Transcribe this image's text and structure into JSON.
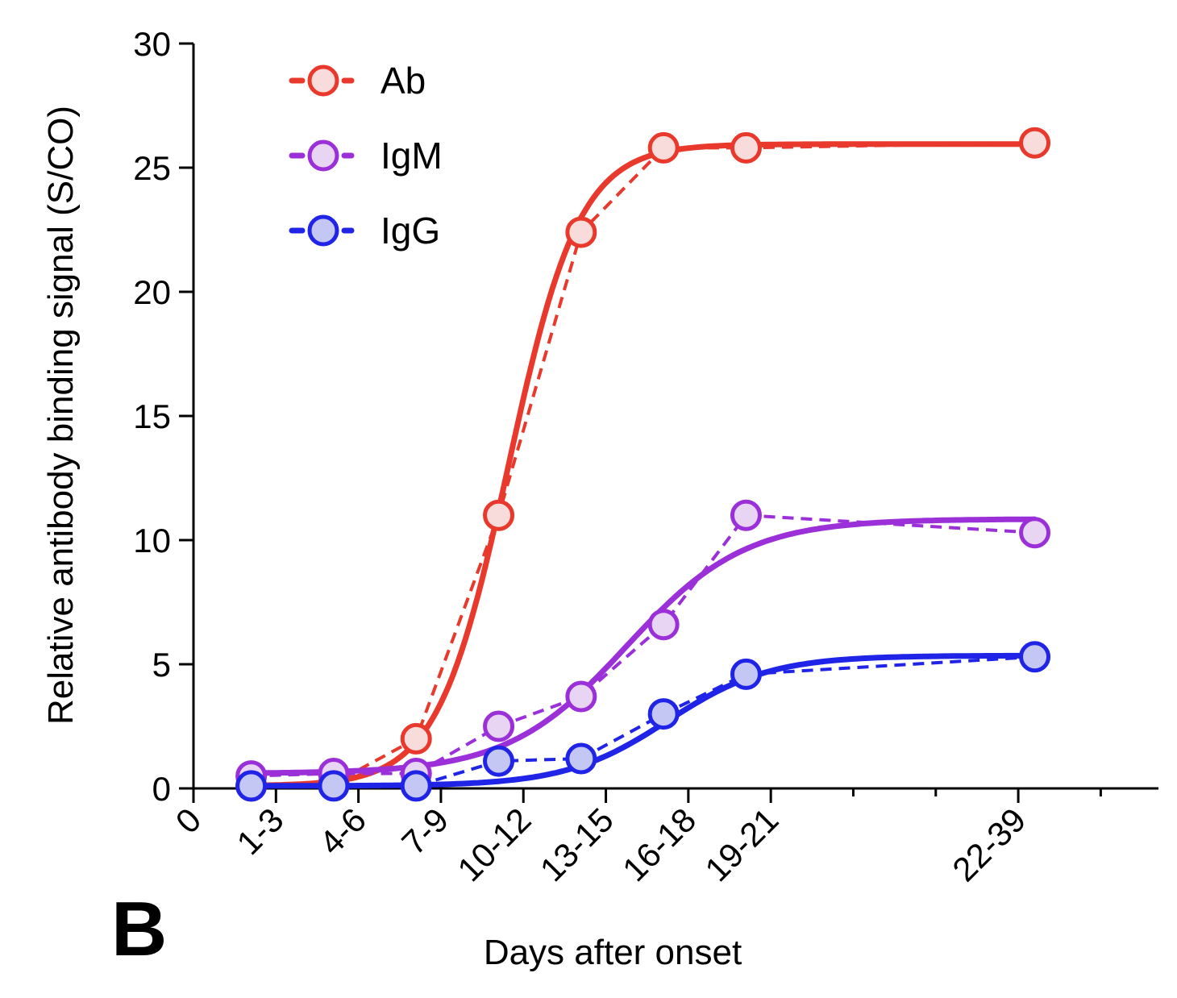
{
  "panel_label": "B",
  "chart_data": {
    "type": "line",
    "xlabel": "Days after onset",
    "ylabel": "Relative antibody binding signal (S/CO)",
    "ylim": [
      0,
      30
    ],
    "yticks": [
      0,
      5,
      10,
      15,
      20,
      25,
      30
    ],
    "xticks": [
      {
        "label": "0",
        "pos": 0
      },
      {
        "label": "1-3",
        "pos": 1
      },
      {
        "label": "4-6",
        "pos": 2
      },
      {
        "label": "7-9",
        "pos": 3
      },
      {
        "label": "10-12",
        "pos": 4
      },
      {
        "label": "13-15",
        "pos": 5
      },
      {
        "label": "16-18",
        "pos": 6
      },
      {
        "label": "19-21",
        "pos": 7
      },
      {
        "label": "22-39",
        "pos": 10
      }
    ],
    "xlim": [
      0,
      11.7
    ],
    "legend_position": "top-left",
    "series": [
      {
        "name": "Ab",
        "color": "#e8392c",
        "fill": "#f8dcdb",
        "x": [
          0.7,
          1.7,
          2.7,
          3.7,
          4.7,
          5.7,
          6.7,
          10.2
        ],
        "values": [
          0.1,
          0.2,
          2.0,
          11.0,
          22.4,
          25.8,
          25.8,
          26.0
        ],
        "fit": {
          "base": 0.1,
          "top": 25.95,
          "mid": 3.82,
          "scale": 0.43
        }
      },
      {
        "name": "IgM",
        "color": "#9b30d9",
        "fill": "#e8d4f3",
        "x": [
          0.7,
          1.7,
          2.7,
          3.7,
          4.7,
          5.7,
          6.7,
          10.2
        ],
        "values": [
          0.5,
          0.6,
          0.6,
          2.5,
          3.7,
          6.6,
          11.0,
          10.3
        ],
        "fit": {
          "base": 0.6,
          "top": 10.85,
          "mid": 5.25,
          "scale": 0.72
        }
      },
      {
        "name": "IgG",
        "color": "#1f24e6",
        "fill": "#c4c7f4",
        "x": [
          0.7,
          1.7,
          2.7,
          3.7,
          4.7,
          5.7,
          6.7,
          10.2
        ],
        "values": [
          0.1,
          0.1,
          0.1,
          1.1,
          1.2,
          3.0,
          4.6,
          5.3
        ],
        "fit": {
          "base": 0.1,
          "top": 5.35,
          "mid": 5.75,
          "scale": 0.62
        }
      }
    ]
  }
}
